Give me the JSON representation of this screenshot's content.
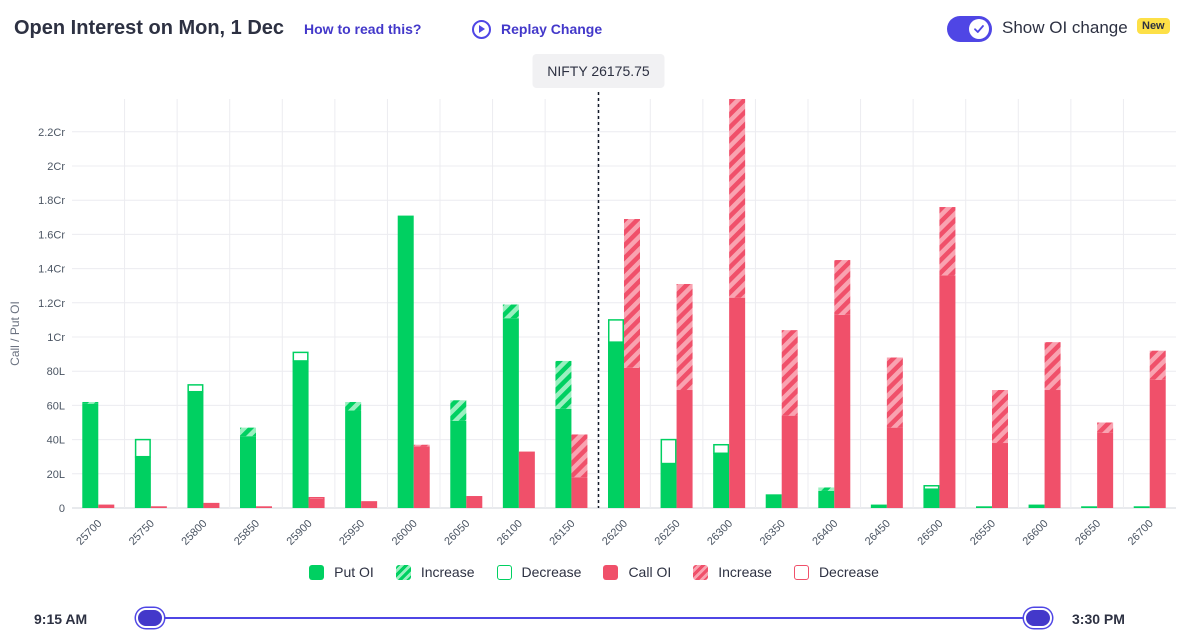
{
  "header": {
    "title": "Open Interest on Mon, 1 Dec",
    "how_to_read": "How to read this?",
    "replay_label": "Replay Change",
    "toggle_label": "Show OI change",
    "new_badge": "New"
  },
  "spot": {
    "label": "NIFTY 26175.75",
    "value": 26175.75
  },
  "legend": {
    "put_oi": "Put OI",
    "put_increase": "Increase",
    "put_decrease": "Decrease",
    "call_oi": "Call OI",
    "call_increase": "Increase",
    "call_decrease": "Decrease"
  },
  "slider": {
    "start": "9:15 AM",
    "end": "3:30 PM"
  },
  "colors": {
    "put": "#00d061",
    "put_light": "#9af0c0",
    "call": "#f0506a",
    "call_light": "#f9a3b1",
    "accent": "#4f46e5"
  },
  "chart_data": {
    "type": "bar",
    "ylabel": "Call / Put OI",
    "ylim": [
      0,
      240
    ],
    "y_ticks": [
      {
        "value": 0,
        "label": "0"
      },
      {
        "value": 20,
        "label": "20L"
      },
      {
        "value": 40,
        "label": "40L"
      },
      {
        "value": 60,
        "label": "60L"
      },
      {
        "value": 80,
        "label": "80L"
      },
      {
        "value": 100,
        "label": "1Cr"
      },
      {
        "value": 120,
        "label": "1.2Cr"
      },
      {
        "value": 140,
        "label": "1.4Cr"
      },
      {
        "value": 160,
        "label": "1.6Cr"
      },
      {
        "value": 180,
        "label": "1.8Cr"
      },
      {
        "value": 200,
        "label": "2Cr"
      },
      {
        "value": 220,
        "label": "2.2Cr"
      }
    ],
    "categories": [
      "25700",
      "25750",
      "25800",
      "25850",
      "25900",
      "25950",
      "26000",
      "26050",
      "26100",
      "26150",
      "26200",
      "26250",
      "26300",
      "26350",
      "26400",
      "26450",
      "26500",
      "26550",
      "26600",
      "26650",
      "26700"
    ],
    "series": [
      {
        "name": "Put OI",
        "values": [
          61,
          30,
          68,
          42,
          86,
          57,
          171,
          51,
          111,
          58,
          97,
          26,
          32,
          8,
          10,
          2,
          11,
          1,
          2,
          1,
          1
        ],
        "increase": [
          1,
          0,
          0,
          5,
          0,
          5,
          0,
          12,
          8,
          28,
          0,
          0,
          0,
          0,
          2,
          0,
          0,
          0,
          0,
          0,
          0
        ],
        "decrease": [
          0,
          10,
          4,
          0,
          5,
          0,
          0,
          0,
          0,
          0,
          13,
          14,
          5,
          0,
          0,
          0,
          2,
          0,
          0,
          0,
          0
        ]
      },
      {
        "name": "Call OI",
        "values": [
          2,
          1,
          3,
          1,
          5,
          4,
          36,
          7,
          33,
          18,
          82,
          69,
          123,
          54,
          113,
          47,
          136,
          38,
          69,
          44,
          75
        ],
        "increase": [
          0,
          0,
          0,
          0,
          0,
          0,
          1,
          0,
          0,
          25,
          87,
          62,
          117,
          50,
          32,
          41,
          40,
          31,
          28,
          6,
          17
        ],
        "decrease": [
          0,
          0,
          0,
          0,
          1,
          0,
          0,
          0,
          0,
          0,
          0,
          0,
          0,
          0,
          0,
          0,
          0,
          0,
          0,
          0,
          0
        ]
      }
    ],
    "grid": true,
    "legend_position": "bottom-center"
  }
}
